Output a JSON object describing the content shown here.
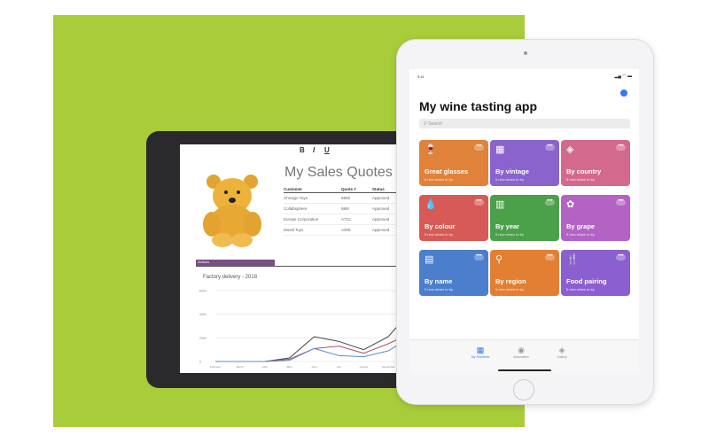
{
  "colors": {
    "background": "#a9cd3a",
    "accent": "#2d7cf6"
  },
  "left_ipad": {
    "toolbar": [
      "B",
      "I",
      "U"
    ],
    "title": "My Sales Quotes",
    "table": {
      "headers": [
        "Customer",
        "Quote #",
        "Status"
      ],
      "rows": [
        [
          "Chicago Toys",
          "6800",
          "Approved"
        ],
        [
          "Collabsphere",
          "6M8",
          "Approved"
        ],
        [
          "Europe Corporation",
          "A71C",
          "Approved"
        ],
        [
          "Mosel Toys",
          "A306",
          "Approved"
        ]
      ]
    },
    "tab_label": "Actions",
    "chart_data": {
      "type": "line",
      "title": "Factory delivery - 2018",
      "categories": [
        "February",
        "March",
        "April",
        "May",
        "June",
        "July",
        "August",
        "September",
        "October"
      ],
      "ylim": [
        0,
        6000
      ],
      "yticks": [
        "0",
        "2000",
        "4000",
        "6000"
      ],
      "series": [
        {
          "values": [
            0,
            0,
            0,
            300,
            2100,
            1700,
            1000,
            2100,
            4500
          ]
        },
        {
          "values": [
            0,
            0,
            0,
            200,
            1100,
            1300,
            700,
            1500,
            2500
          ]
        },
        {
          "values": [
            0,
            0,
            0,
            100,
            1100,
            500,
            400,
            900,
            2200
          ]
        }
      ]
    }
  },
  "right_ipad": {
    "status_time": "9:41",
    "title": "My wine tasting app",
    "search_placeholder": "Search",
    "cards": [
      {
        "name": "Great glasses",
        "sub": "5 new wines to try",
        "color": "#e0823a",
        "icon": "wine-glass-icon",
        "glyph": "🍷"
      },
      {
        "name": "By vintage",
        "sub": "5 new wines to try",
        "color": "#8a63cc",
        "icon": "calendar-icon",
        "glyph": "▦"
      },
      {
        "name": "By country",
        "sub": "5 new wines to try",
        "color": "#d3698c",
        "icon": "map-icon",
        "glyph": "◈"
      },
      {
        "name": "By colour",
        "sub": "5 new wines to try",
        "color": "#d65a55",
        "icon": "drop-icon",
        "glyph": "💧"
      },
      {
        "name": "By year",
        "sub": "5 new wines to try",
        "color": "#4ba04a",
        "icon": "calendar-grid-icon",
        "glyph": "▥"
      },
      {
        "name": "By grape",
        "sub": "5 new wines to try",
        "color": "#b562c5",
        "icon": "grape-icon",
        "glyph": "✿"
      },
      {
        "name": "By name",
        "sub": "5 new wines to try",
        "color": "#4b7fcc",
        "icon": "label-icon",
        "glyph": "▤"
      },
      {
        "name": "By region",
        "sub": "5 new wines to try",
        "color": "#e27f32",
        "icon": "pin-icon",
        "glyph": "⚲"
      },
      {
        "name": "Food pairing",
        "sub": "5 new wines to try",
        "color": "#8c5fd0",
        "icon": "fork-glass-icon",
        "glyph": "🍴"
      }
    ],
    "tabs": [
      {
        "label": "My Shortcuts",
        "glyph": "▦"
      },
      {
        "label": "Automation",
        "glyph": "◉"
      },
      {
        "label": "Gallery",
        "glyph": "◈"
      }
    ]
  }
}
